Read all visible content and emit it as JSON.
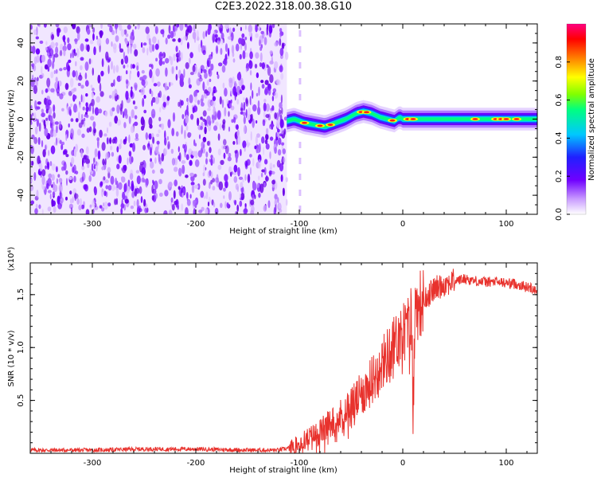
{
  "title": "C2E3.2022.318.00.38.G10",
  "chart_data": [
    {
      "type": "heatmap",
      "xlabel": "Height of straight line (km)",
      "ylabel": "Frequency (Hz)",
      "xlim": [
        -360,
        130
      ],
      "ylim": [
        -50,
        50
      ],
      "xticks": [
        -300,
        -200,
        -100,
        0,
        100
      ],
      "yticks": [
        -40,
        -20,
        0,
        20,
        40
      ],
      "noise_region_x": [
        -360,
        -112
      ],
      "signal_trace": {
        "x": [
          -112,
          -105,
          -95,
          -85,
          -75,
          -65,
          -55,
          -45,
          -38,
          -30,
          -22,
          -15,
          -8,
          -3,
          0,
          10,
          20,
          40,
          60,
          80,
          100,
          120,
          130
        ],
        "y": [
          -1,
          0,
          -2,
          -3,
          -4,
          -2,
          0,
          3,
          4,
          3,
          1,
          0,
          -1,
          1,
          0,
          0,
          0,
          0,
          0,
          0,
          0,
          0,
          0
        ]
      },
      "colorbar": {
        "label": "Normalized spectral amplitude",
        "range": [
          0,
          1
        ],
        "ticks": [
          "0.0",
          "0.2",
          "0.4",
          "0.6",
          "0.8"
        ],
        "colors": [
          "#ffffff",
          "#c99cff",
          "#7000ff",
          "#2020ff",
          "#00c8ff",
          "#00ff80",
          "#80ff00",
          "#ffff00",
          "#ff8000",
          "#ff0000",
          "#ff0080"
        ]
      }
    },
    {
      "type": "line",
      "xlabel": "Height of straight line (km)",
      "ylabel": "SNR (10 * v/v)",
      "yscale_label": "(x10⁴)",
      "xlim": [
        -360,
        130
      ],
      "ylim": [
        0,
        1.8
      ],
      "xticks": [
        -300,
        -200,
        -100,
        0,
        100
      ],
      "yticks": [
        0.5,
        1.0,
        1.5
      ],
      "ytick_labels": [
        "0.5",
        "1.0",
        "1.5"
      ],
      "series": [
        {
          "color": "#e8322d",
          "x": [
            -360,
            -300,
            -250,
            -200,
            -150,
            -120,
            -110,
            -100,
            -90,
            -80,
            -70,
            -60,
            -50,
            -40,
            -30,
            -20,
            -10,
            -5,
            0,
            5,
            8,
            10,
            12,
            15,
            20,
            30,
            40,
            50,
            60,
            70,
            80,
            90,
            100,
            110,
            120,
            130
          ],
          "y": [
            0.03,
            0.03,
            0.04,
            0.04,
            0.03,
            0.03,
            0.05,
            0.1,
            0.15,
            0.2,
            0.28,
            0.35,
            0.45,
            0.55,
            0.68,
            0.85,
            1.0,
            1.08,
            1.15,
            1.2,
            1.3,
            0.6,
            1.35,
            1.4,
            1.45,
            1.55,
            1.6,
            1.63,
            1.65,
            1.63,
            1.62,
            1.62,
            1.61,
            1.6,
            1.57,
            1.55
          ]
        }
      ]
    }
  ]
}
